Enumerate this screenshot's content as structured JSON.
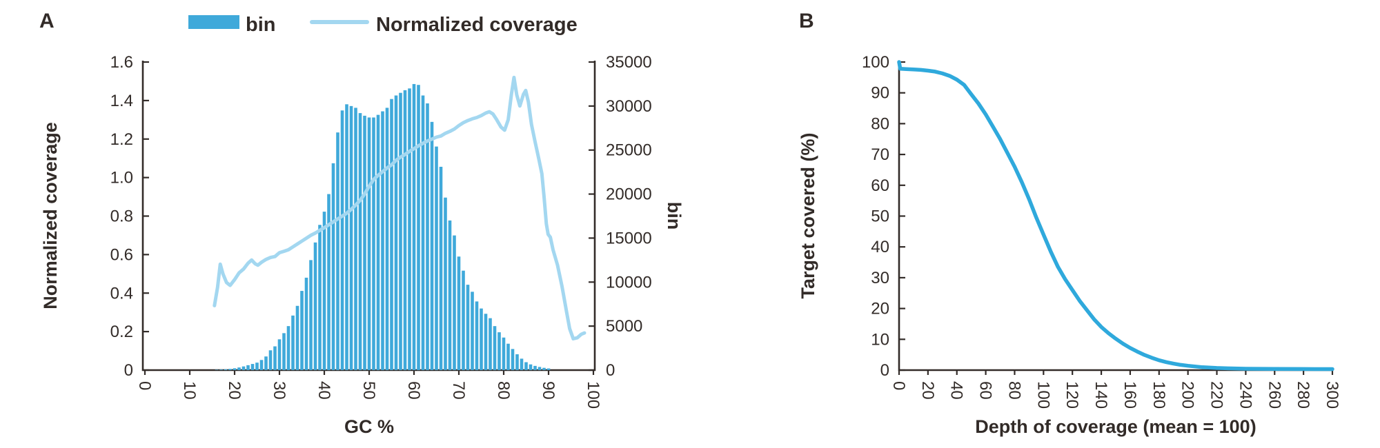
{
  "figure_labels": {
    "panel_a": "A",
    "panel_b": "B"
  },
  "legend": {
    "bin_label": "bin",
    "coverage_label": "Normalized coverage"
  },
  "colors": {
    "bar": "#3fa9da",
    "line_a": "#a3d7f0",
    "line_b": "#2fa9dc",
    "ink": "#322b28"
  },
  "panel_a_axes": {
    "y_left_title": "Normalized coverage",
    "y_right_title": "bin",
    "x_title": "GC %",
    "y_left_ticks": [
      "0",
      "0.2",
      "0.4",
      "0.6",
      "0.8",
      "1.0",
      "1.2",
      "1.4",
      "1.6"
    ],
    "y_right_ticks": [
      "0",
      "5000",
      "10000",
      "15000",
      "20000",
      "25000",
      "30000",
      "35000"
    ],
    "x_ticks": [
      "0",
      "10",
      "20",
      "30",
      "40",
      "50",
      "60",
      "70",
      "80",
      "90",
      "100"
    ]
  },
  "panel_b_axes": {
    "y_title": "Target covered (%)",
    "x_title": "Depth of coverage (mean = 100)",
    "y_ticks": [
      "0",
      "10",
      "20",
      "30",
      "40",
      "50",
      "60",
      "70",
      "80",
      "90",
      "100"
    ],
    "x_ticks": [
      "0",
      "20",
      "40",
      "60",
      "80",
      "100",
      "120",
      "140",
      "160",
      "180",
      "200",
      "220",
      "240",
      "260",
      "280",
      "300"
    ]
  },
  "chart_data": [
    {
      "type": "bar",
      "panel": "A",
      "title": "GC bias plot",
      "xlabel": "GC %",
      "ylabel_left": "Normalized coverage",
      "ylabel_right": "bin",
      "xlim": [
        0,
        100
      ],
      "ylim_left": [
        0,
        1.6
      ],
      "ylim_right": [
        0,
        35000
      ],
      "grid": false,
      "legend_position": "top",
      "series": [
        {
          "name": "bin",
          "type": "bar",
          "axis": "right",
          "x": [
            16,
            17,
            18,
            19,
            20,
            21,
            22,
            23,
            24,
            25,
            26,
            27,
            28,
            29,
            30,
            31,
            32,
            33,
            34,
            35,
            36,
            37,
            38,
            39,
            40,
            41,
            42,
            43,
            44,
            45,
            46,
            47,
            48,
            49,
            50,
            51,
            52,
            53,
            54,
            55,
            56,
            57,
            58,
            59,
            60,
            61,
            62,
            63,
            64,
            65,
            66,
            67,
            68,
            69,
            70,
            71,
            72,
            73,
            74,
            75,
            76,
            77,
            78,
            79,
            80,
            81,
            82,
            83,
            84,
            85,
            86,
            87,
            88,
            89,
            90
          ],
          "values": [
            30,
            60,
            90,
            140,
            210,
            300,
            420,
            560,
            700,
            850,
            1150,
            1550,
            2250,
            2700,
            3500,
            4200,
            5000,
            6200,
            7300,
            9000,
            10500,
            12500,
            14500,
            16500,
            18000,
            20000,
            23500,
            27000,
            29500,
            30200,
            30000,
            29800,
            29200,
            28900,
            28700,
            28700,
            29000,
            29400,
            29800,
            30800,
            31200,
            31500,
            31800,
            32000,
            32500,
            32400,
            31200,
            30300,
            28200,
            25400,
            23100,
            19600,
            17000,
            15300,
            12900,
            11300,
            9700,
            8900,
            7800,
            7000,
            6400,
            5900,
            5000,
            4300,
            3700,
            3000,
            2400,
            1800,
            1300,
            900,
            650,
            480,
            360,
            260,
            190
          ]
        },
        {
          "name": "Normalized coverage",
          "type": "line",
          "axis": "left",
          "points": [
            [
              15.5,
              0.335
            ],
            [
              16.2,
              0.43
            ],
            [
              16.8,
              0.55
            ],
            [
              17.4,
              0.5
            ],
            [
              18.2,
              0.455
            ],
            [
              19,
              0.44
            ],
            [
              20,
              0.47
            ],
            [
              21,
              0.505
            ],
            [
              22,
              0.525
            ],
            [
              23,
              0.555
            ],
            [
              23.8,
              0.572
            ],
            [
              24.6,
              0.552
            ],
            [
              25.2,
              0.545
            ],
            [
              26,
              0.56
            ],
            [
              27,
              0.575
            ],
            [
              28,
              0.585
            ],
            [
              29,
              0.59
            ],
            [
              30,
              0.61
            ],
            [
              31,
              0.617
            ],
            [
              32,
              0.625
            ],
            [
              33,
              0.64
            ],
            [
              34,
              0.655
            ],
            [
              35,
              0.67
            ],
            [
              36,
              0.685
            ],
            [
              37,
              0.7
            ],
            [
              38,
              0.712
            ],
            [
              39,
              0.726
            ],
            [
              40,
              0.74
            ],
            [
              41,
              0.755
            ],
            [
              42,
              0.77
            ],
            [
              43,
              0.785
            ],
            [
              44,
              0.8
            ],
            [
              45,
              0.815
            ],
            [
              46,
              0.835
            ],
            [
              47,
              0.857
            ],
            [
              48,
              0.882
            ],
            [
              49,
              0.915
            ],
            [
              50,
              0.955
            ],
            [
              51,
              0.99
            ],
            [
              52,
              1.012
            ],
            [
              53,
              1.03
            ],
            [
              54,
              1.05
            ],
            [
              55,
              1.066
            ],
            [
              56,
              1.09
            ],
            [
              57,
              1.106
            ],
            [
              58,
              1.12
            ],
            [
              59,
              1.136
            ],
            [
              60,
              1.15
            ],
            [
              61,
              1.165
            ],
            [
              62,
              1.178
            ],
            [
              63,
              1.19
            ],
            [
              64,
              1.2
            ],
            [
              65,
              1.21
            ],
            [
              66,
              1.216
            ],
            [
              67,
              1.23
            ],
            [
              68,
              1.24
            ],
            [
              69,
              1.252
            ],
            [
              70,
              1.27
            ],
            [
              71,
              1.285
            ],
            [
              72,
              1.296
            ],
            [
              73,
              1.305
            ],
            [
              74,
              1.312
            ],
            [
              75,
              1.322
            ],
            [
              76,
              1.335
            ],
            [
              76.8,
              1.342
            ],
            [
              77.6,
              1.33
            ],
            [
              78.4,
              1.302
            ],
            [
              79.4,
              1.262
            ],
            [
              80.2,
              1.246
            ],
            [
              81,
              1.3
            ],
            [
              81.7,
              1.43
            ],
            [
              82.3,
              1.52
            ],
            [
              82.9,
              1.43
            ],
            [
              83.6,
              1.372
            ],
            [
              84.4,
              1.432
            ],
            [
              84.9,
              1.452
            ],
            [
              85.5,
              1.392
            ],
            [
              86.2,
              1.275
            ],
            [
              87,
              1.185
            ],
            [
              87.8,
              1.1
            ],
            [
              88.5,
              1.02
            ],
            [
              89,
              0.9
            ],
            [
              89.5,
              0.76
            ],
            [
              89.9,
              0.705
            ],
            [
              90.4,
              0.69
            ],
            [
              91,
              0.625
            ],
            [
              92,
              0.545
            ],
            [
              93,
              0.435
            ],
            [
              94,
              0.305
            ],
            [
              94.7,
              0.215
            ],
            [
              95.5,
              0.163
            ],
            [
              96.4,
              0.168
            ],
            [
              97.3,
              0.186
            ],
            [
              98,
              0.193
            ]
          ]
        }
      ]
    },
    {
      "type": "line",
      "panel": "B",
      "title": "Depth of coverage plot",
      "xlabel": "Depth of coverage (mean = 100)",
      "ylabel": "Target covered (%)",
      "xlim": [
        0,
        300
      ],
      "ylim": [
        0,
        100
      ],
      "grid": false,
      "series": [
        {
          "name": "Target covered (%)",
          "type": "line",
          "axis": "left",
          "x": [
            0,
            0.8,
            5,
            10,
            15,
            20,
            25,
            30,
            35,
            40,
            45,
            50,
            55,
            60,
            65,
            70,
            75,
            80,
            85,
            90,
            95,
            100,
            105,
            110,
            115,
            120,
            125,
            130,
            135,
            140,
            145,
            150,
            155,
            160,
            165,
            170,
            175,
            180,
            185,
            190,
            195,
            200,
            210,
            220,
            230,
            240,
            260,
            280,
            300
          ],
          "values": [
            100,
            97.8,
            97.7,
            97.6,
            97.45,
            97.2,
            96.9,
            96.3,
            95.5,
            94.3,
            92.6,
            89.5,
            86.5,
            83,
            79,
            75,
            70.5,
            66,
            61,
            55.5,
            49.5,
            44,
            38.5,
            33.5,
            29.5,
            26,
            22.5,
            19.5,
            16.5,
            14,
            12,
            10.2,
            8.6,
            7.2,
            6,
            4.9,
            4,
            3.2,
            2.6,
            2.1,
            1.7,
            1.4,
            0.95,
            0.7,
            0.55,
            0.45,
            0.38,
            0.35,
            0.33
          ]
        }
      ]
    }
  ]
}
